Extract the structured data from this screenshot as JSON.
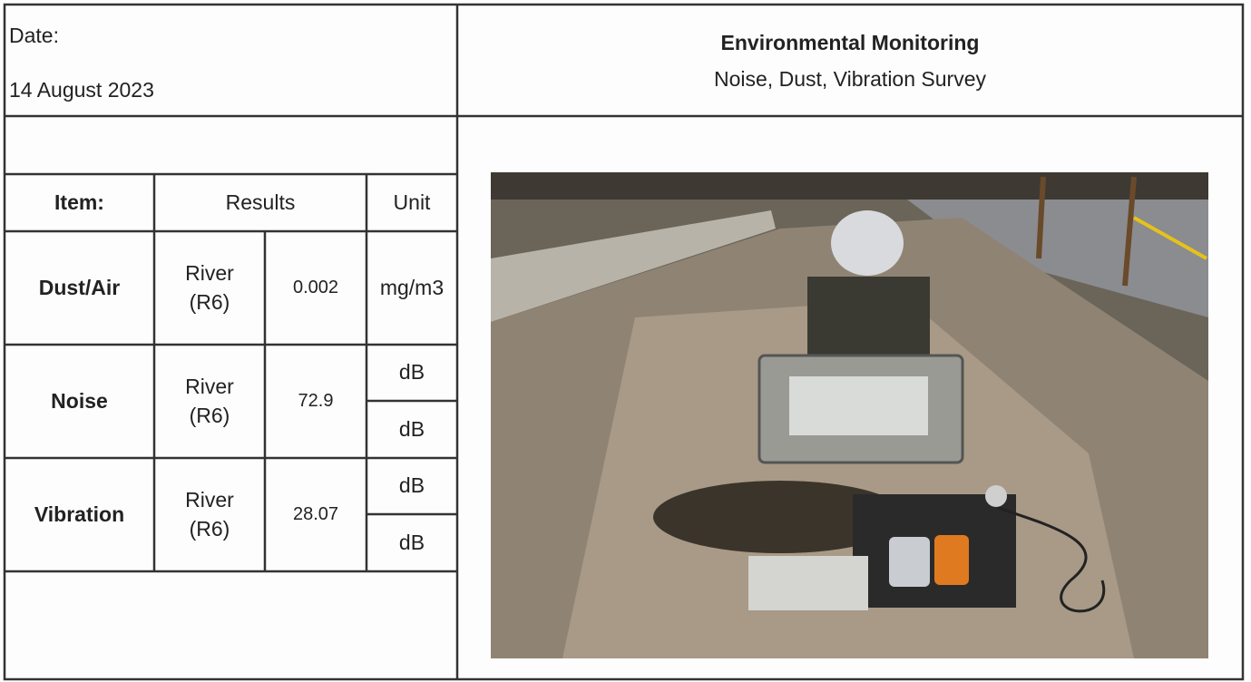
{
  "date": {
    "label": "Date:",
    "value": "14 August 2023"
  },
  "header": {
    "title": "Environmental Monitoring",
    "subtitle": "Noise, Dust, Vibration Survey"
  },
  "table": {
    "columns": [
      "Item:",
      "Results",
      "Unit"
    ],
    "rows": [
      {
        "item": "Dust/Air",
        "location": "River (R6)",
        "result": "0.002",
        "units": [
          "mg/m3"
        ]
      },
      {
        "item": "Noise",
        "location": "River (R6)",
        "result": "72.9",
        "units": [
          "dB",
          "dB"
        ]
      },
      {
        "item": "Vibration",
        "location": "River (R6)",
        "result": "28.07",
        "units": [
          "dB",
          "dB"
        ]
      }
    ]
  }
}
